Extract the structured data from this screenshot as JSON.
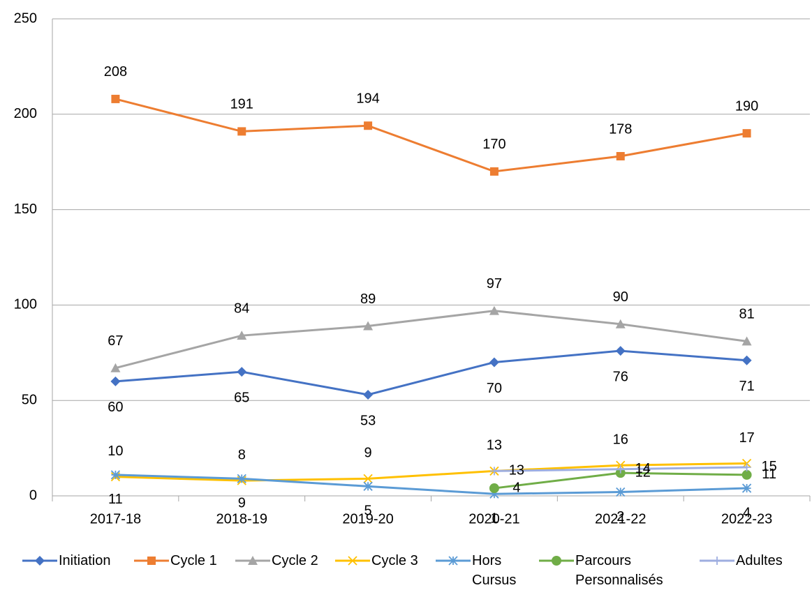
{
  "chart_data": {
    "type": "line",
    "categories": [
      "2017-18",
      "2018-19",
      "2019-20",
      "2020-21",
      "2021-22",
      "2022-23"
    ],
    "ylim": [
      0,
      250
    ],
    "yticks": [
      0,
      50,
      100,
      150,
      200,
      250
    ],
    "grid": true,
    "legend": "bottom",
    "series": [
      {
        "name": "Initiation",
        "color": "#4472c4",
        "marker": "diamond",
        "values": [
          60,
          65,
          53,
          70,
          76,
          71
        ]
      },
      {
        "name": "Cycle 1",
        "color": "#ed7d31",
        "marker": "square",
        "values": [
          208,
          191,
          194,
          170,
          178,
          190
        ]
      },
      {
        "name": "Cycle 2",
        "color": "#a5a5a5",
        "marker": "triangle",
        "values": [
          67,
          84,
          89,
          97,
          90,
          81
        ]
      },
      {
        "name": "Cycle 3",
        "color": "#ffc000",
        "marker": "x",
        "values": [
          10,
          8,
          9,
          13,
          16,
          17
        ]
      },
      {
        "name": "Hors Cursus",
        "color": "#5b9bd5",
        "marker": "star",
        "values": [
          11,
          9,
          5,
          1,
          2,
          4
        ]
      },
      {
        "name": "Parcours Personnalisés",
        "color": "#70ad47",
        "marker": "circle",
        "values": [
          null,
          null,
          null,
          4,
          12,
          11
        ]
      },
      {
        "name": "Adultes",
        "color": "#9eaee0",
        "marker": "plus",
        "values": [
          null,
          null,
          null,
          13,
          14,
          15
        ]
      }
    ]
  }
}
